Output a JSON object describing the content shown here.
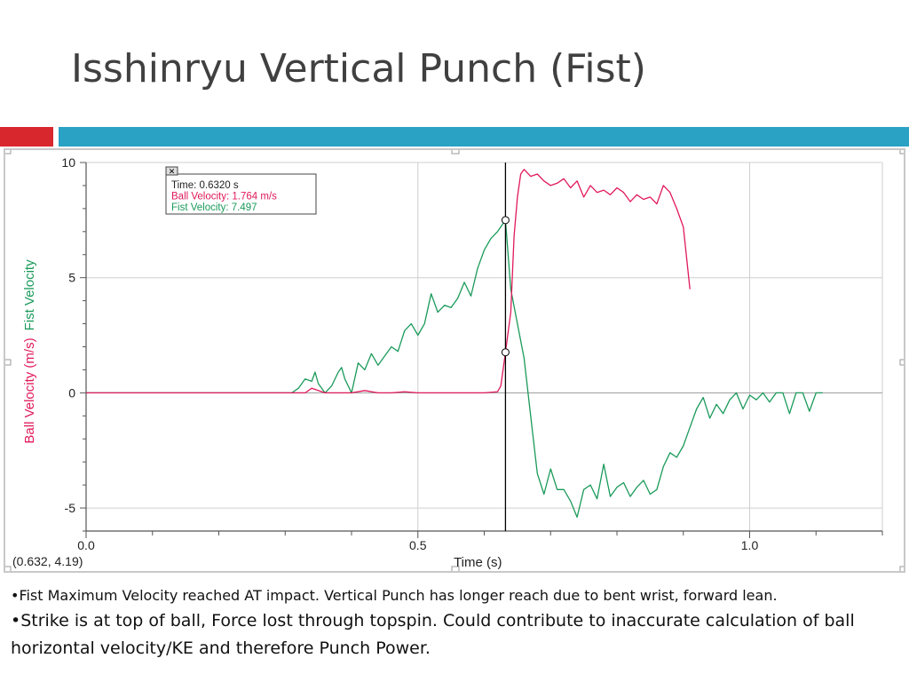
{
  "slide": {
    "title": "Isshinryu Vertical Punch (Fist)",
    "bullets": [
      "•Fist Maximum Velocity reached AT impact.  Vertical Punch has longer reach due to bent wrist, forward lean.",
      "•Strike is at top of ball, Force lost through topspin. Could contribute to inaccurate calculation of ball horizontal velocity/KE and therefore Punch Power."
    ]
  },
  "colors": {
    "accent_red": "#d9272e",
    "accent_blue": "#2aa2c4",
    "ball_series": "#e0195a",
    "fist_series": "#1a9a5a",
    "title_text": "#404040"
  },
  "chart_data": {
    "type": "line",
    "xlabel": "Time (s)",
    "ylabel_parts": [
      "Ball Velocity (m/s)",
      "Fist Velocity"
    ],
    "xlim": [
      0.0,
      1.2
    ],
    "ylim": [
      -6,
      10
    ],
    "x_ticks": [
      "0.0",
      "0.5",
      "1.0"
    ],
    "y_ticks": [
      "10",
      "5",
      "0",
      "-5"
    ],
    "grid": true,
    "cursor": {
      "time": 0.632,
      "readout": "(0.632, 4.19)"
    },
    "examine_box": {
      "time": "Time: 0.6320 s",
      "ball": "Ball Velocity: 1.764 m/s",
      "fist": "Fist Velocity: 7.497"
    },
    "series": [
      {
        "name": "Ball Velocity",
        "x": [
          0.0,
          0.31,
          0.33,
          0.34,
          0.35,
          0.36,
          0.38,
          0.4,
          0.42,
          0.44,
          0.46,
          0.48,
          0.5,
          0.52,
          0.54,
          0.56,
          0.6,
          0.62,
          0.625,
          0.632,
          0.64,
          0.645,
          0.65,
          0.655,
          0.66,
          0.67,
          0.68,
          0.69,
          0.7,
          0.71,
          0.72,
          0.73,
          0.74,
          0.75,
          0.76,
          0.77,
          0.78,
          0.79,
          0.8,
          0.81,
          0.82,
          0.83,
          0.84,
          0.85,
          0.86,
          0.87,
          0.88,
          0.89,
          0.9,
          0.91
        ],
        "y": [
          0.0,
          0.0,
          0.0,
          0.2,
          0.1,
          0.0,
          0.0,
          0.0,
          0.1,
          0.0,
          0.0,
          0.05,
          0.0,
          0.0,
          0.0,
          0.0,
          0.0,
          0.05,
          0.3,
          1.76,
          3.5,
          6.8,
          8.5,
          9.5,
          9.7,
          9.4,
          9.5,
          9.2,
          9.0,
          9.1,
          9.3,
          8.9,
          9.2,
          8.5,
          9.0,
          8.7,
          8.8,
          8.6,
          8.9,
          8.7,
          8.3,
          8.6,
          8.4,
          8.5,
          8.2,
          9.0,
          8.7,
          8.0,
          7.2,
          4.5
        ]
      },
      {
        "name": "Fist Velocity",
        "x": [
          0.0,
          0.31,
          0.32,
          0.33,
          0.34,
          0.345,
          0.35,
          0.36,
          0.37,
          0.38,
          0.385,
          0.39,
          0.4,
          0.41,
          0.42,
          0.43,
          0.44,
          0.45,
          0.46,
          0.47,
          0.48,
          0.49,
          0.5,
          0.51,
          0.52,
          0.53,
          0.54,
          0.55,
          0.56,
          0.57,
          0.58,
          0.59,
          0.6,
          0.61,
          0.62,
          0.632,
          0.64,
          0.65,
          0.66,
          0.67,
          0.68,
          0.69,
          0.7,
          0.71,
          0.72,
          0.73,
          0.74,
          0.75,
          0.76,
          0.77,
          0.78,
          0.79,
          0.8,
          0.81,
          0.82,
          0.83,
          0.84,
          0.85,
          0.86,
          0.87,
          0.88,
          0.89,
          0.9,
          0.91,
          0.92,
          0.93,
          0.94,
          0.95,
          0.96,
          0.97,
          0.98,
          0.99,
          1.0,
          1.01,
          1.02,
          1.03,
          1.04,
          1.05,
          1.06,
          1.07,
          1.08,
          1.09,
          1.1,
          1.11
        ],
        "y": [
          0.0,
          0.0,
          0.2,
          0.6,
          0.5,
          0.9,
          0.4,
          0.0,
          0.3,
          0.9,
          1.1,
          0.6,
          0.0,
          1.3,
          1.0,
          1.7,
          1.2,
          1.6,
          2.0,
          1.8,
          2.7,
          3.0,
          2.5,
          3.0,
          4.3,
          3.5,
          3.8,
          3.7,
          4.1,
          4.8,
          4.2,
          5.4,
          6.2,
          6.7,
          7.0,
          7.5,
          4.5,
          3.0,
          1.5,
          -1.0,
          -3.5,
          -4.4,
          -3.3,
          -4.2,
          -4.2,
          -4.7,
          -5.4,
          -4.2,
          -4.0,
          -4.6,
          -3.1,
          -4.5,
          -4.1,
          -3.9,
          -4.5,
          -4.1,
          -3.8,
          -4.4,
          -4.2,
          -3.2,
          -2.6,
          -2.8,
          -2.3,
          -1.5,
          -0.7,
          -0.2,
          -1.1,
          -0.5,
          -0.9,
          -0.3,
          0.0,
          -0.7,
          -0.1,
          -0.3,
          0.0,
          -0.4,
          0.0,
          0.0,
          -0.9,
          0.0,
          0.0,
          -0.8,
          0.0,
          0.0
        ]
      }
    ]
  }
}
